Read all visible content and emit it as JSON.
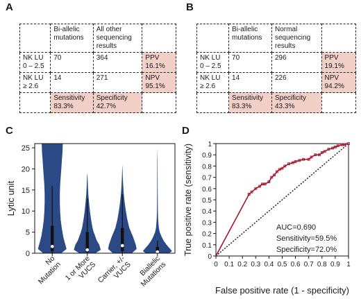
{
  "panels": {
    "A": {
      "letter": "A",
      "header": [
        "",
        "Bi-allelic mutations",
        "All other sequencing results",
        ""
      ],
      "rows": [
        [
          "NK LU 0 – 2.5",
          "70",
          "364",
          "PPV 16.1%"
        ],
        [
          "NK LU ≥ 2.6",
          "14",
          "271",
          "NPV 95.1%"
        ],
        [
          "",
          "Sensitivity 83.3%",
          "Specificity 42.7%",
          ""
        ]
      ]
    },
    "B": {
      "letter": "B",
      "header": [
        "",
        "Bi-allelic mutations",
        "Normal sequencing results",
        ""
      ],
      "rows": [
        [
          "NK LU 0 – 2.5",
          "70",
          "296",
          "PPV 19.1%"
        ],
        [
          "NK LU ≥ 2.6",
          "14",
          "226",
          "NPV 94.2%"
        ],
        [
          "",
          "Sensitivity 83.3%",
          "Specificity 43.3%",
          ""
        ]
      ]
    },
    "C": {
      "letter": "C"
    },
    "D": {
      "letter": "D"
    }
  },
  "chart_data": [
    {
      "type": "violin",
      "ylabel": "Lytic unit",
      "ylim": [
        0,
        26
      ],
      "yticks": [
        0,
        5,
        10,
        15,
        20,
        25
      ],
      "color": "#2b4a85",
      "categories": [
        "No Mutation",
        "1 or More VUCS",
        "Carrier, +/- VUCS",
        "Biallelic Mutations"
      ],
      "groups": [
        {
          "name": "No Mutation",
          "median": 1.6,
          "q1": 0.5,
          "q3": 6.5,
          "whisker_low": 0,
          "whisker_high": 16,
          "density": [
            [
              0,
              0.62
            ],
            [
              1,
              0.98
            ],
            [
              2,
              0.9
            ],
            [
              3,
              0.82
            ],
            [
              4,
              0.75
            ],
            [
              5,
              0.7
            ],
            [
              6,
              0.65
            ],
            [
              8,
              0.58
            ],
            [
              10,
              0.54
            ],
            [
              12,
              0.52
            ],
            [
              14,
              0.52
            ],
            [
              16,
              0.54
            ],
            [
              18,
              0.58
            ],
            [
              20,
              0.62
            ],
            [
              22,
              0.66
            ],
            [
              24,
              0.7
            ],
            [
              26,
              0.72
            ]
          ]
        },
        {
          "name": "1 or More VUCS",
          "median": 0.8,
          "q1": 0.3,
          "q3": 5,
          "whisker_low": 0,
          "whisker_high": 13,
          "density": [
            [
              0,
              0.55
            ],
            [
              0.8,
              0.92
            ],
            [
              2,
              0.82
            ],
            [
              3,
              0.65
            ],
            [
              4,
              0.55
            ],
            [
              5,
              0.44
            ],
            [
              6,
              0.36
            ],
            [
              8,
              0.26
            ],
            [
              10,
              0.18
            ],
            [
              12,
              0.12
            ],
            [
              14,
              0.07
            ],
            [
              16,
              0.04
            ],
            [
              18,
              0.02
            ],
            [
              19,
              0
            ]
          ]
        },
        {
          "name": "Carrier, +/- VUCS",
          "median": 1.8,
          "q1": 0.5,
          "q3": 6,
          "whisker_low": 0,
          "whisker_high": 14,
          "density": [
            [
              0,
              0.65
            ],
            [
              1,
              0.98
            ],
            [
              2,
              0.92
            ],
            [
              3,
              0.82
            ],
            [
              4,
              0.72
            ],
            [
              5,
              0.6
            ],
            [
              6,
              0.48
            ],
            [
              8,
              0.34
            ],
            [
              10,
              0.24
            ],
            [
              12,
              0.16
            ],
            [
              14,
              0.1
            ],
            [
              16,
              0.06
            ],
            [
              18,
              0.03
            ],
            [
              20,
              0.01
            ],
            [
              21,
              0
            ]
          ]
        },
        {
          "name": "Biallelic Mutations",
          "median": 0.3,
          "q1": 0.1,
          "q3": 1.5,
          "whisker_low": 0,
          "whisker_high": 3,
          "density": [
            [
              0,
              0.8
            ],
            [
              0.5,
              1.0
            ],
            [
              1,
              0.88
            ],
            [
              2,
              0.62
            ],
            [
              3,
              0.42
            ],
            [
              4,
              0.28
            ],
            [
              5,
              0.16
            ],
            [
              6,
              0.1
            ],
            [
              8,
              0.05
            ],
            [
              10,
              0.03
            ],
            [
              14,
              0.02
            ],
            [
              18,
              0.015
            ],
            [
              22,
              0.01
            ],
            [
              25,
              0
            ]
          ]
        }
      ]
    },
    {
      "type": "line",
      "xlabel": "False positive rate (1 - specificity)",
      "ylabel": "True positive rate (sensitivity)",
      "xlim": [
        0,
        1
      ],
      "ylim": [
        0,
        1
      ],
      "xticks": [
        0,
        0.1,
        0.2,
        0.3,
        0.4,
        0.5,
        0.6,
        0.7,
        0.8,
        0.9,
        1
      ],
      "yticks": [
        0,
        0.1,
        0.2,
        0.3,
        0.4,
        0.5,
        0.6,
        0.7,
        0.8,
        0.9,
        1
      ],
      "tick_labels": [
        "0",
        "0.1",
        "0.2",
        "0.3",
        "0.4",
        "0.5",
        "0.6",
        "0.7",
        "0.8",
        "0.9",
        "1"
      ],
      "series": [
        {
          "color": "#a3142a",
          "x": [
            0,
            0.25,
            0.27,
            0.3,
            0.33,
            0.35,
            0.37,
            0.4,
            0.42,
            0.44,
            0.46,
            0.48,
            0.5,
            0.52,
            0.55,
            0.58,
            0.6,
            0.63,
            0.66,
            0.7,
            0.72,
            0.75,
            0.78,
            0.8,
            0.82,
            0.85,
            0.88,
            0.9,
            0.92,
            0.95,
            0.97,
            1
          ],
          "y": [
            0,
            0.55,
            0.57,
            0.6,
            0.62,
            0.64,
            0.64,
            0.66,
            0.7,
            0.72,
            0.75,
            0.77,
            0.78,
            0.8,
            0.82,
            0.83,
            0.84,
            0.85,
            0.86,
            0.86,
            0.88,
            0.9,
            0.9,
            0.92,
            0.93,
            0.95,
            0.96,
            0.97,
            0.98,
            0.99,
            0.99,
            1
          ]
        },
        {
          "color": "#222222",
          "dash": true,
          "x": [
            0,
            1
          ],
          "y": [
            0,
            1
          ]
        }
      ],
      "annotations": [
        "AUC=0.690",
        "Sensitivity=59.5%",
        "Specificity=72.0%"
      ]
    }
  ]
}
